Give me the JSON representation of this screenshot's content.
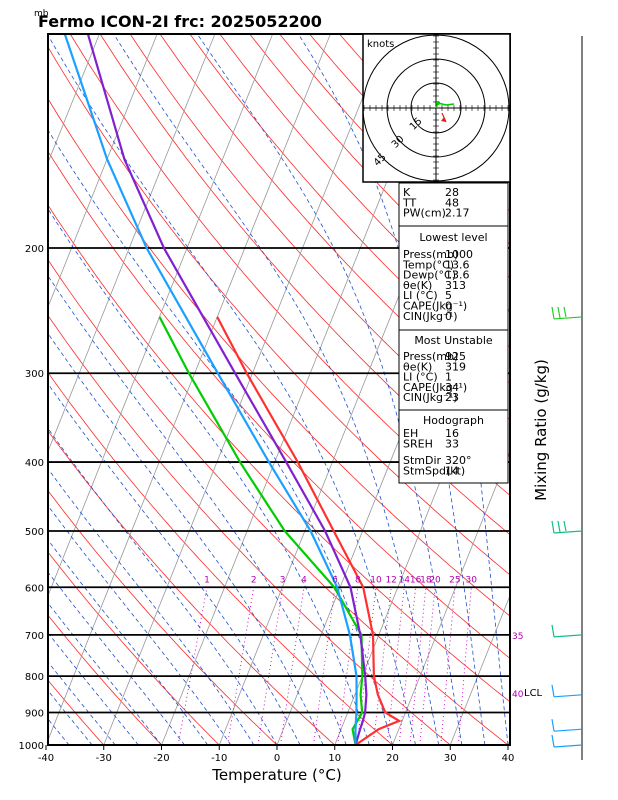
{
  "chart_data": {
    "type": "line",
    "title": "Fermo ICON-2I frc: 2025052200",
    "pressure_unit_label": "mb",
    "xlabel": "Temperature (°C)",
    "right_axis_label": "Mixing Ratio (g/kg)",
    "xlim": [
      -40,
      40
    ],
    "ylim": [
      1000,
      100
    ],
    "y_scale": "log",
    "x_ticks": [
      "-40",
      "-30",
      "-20",
      "-10",
      "0",
      "10",
      "20",
      "30",
      "40"
    ],
    "y_ticks": [
      "200",
      "300",
      "400",
      "500",
      "600",
      "700",
      "800",
      "900",
      "1000"
    ],
    "mixing_ratio_labels": [
      "1",
      "2",
      "3",
      "4",
      "6",
      "8",
      "10",
      "12",
      "14",
      "16",
      "18",
      "20",
      "25",
      "30"
    ],
    "annotations": [
      "35",
      "40",
      "LCL"
    ],
    "series": [
      {
        "color": "#ff3030",
        "points": [
          [
            1000,
            13.6
          ],
          [
            950,
            16.5
          ],
          [
            925,
            19.5
          ],
          [
            900,
            16.5
          ],
          [
            850,
            14
          ],
          [
            800,
            12
          ],
          [
            700,
            9
          ],
          [
            600,
            4
          ],
          [
            500,
            -5
          ],
          [
            400,
            -16
          ],
          [
            300,
            -31
          ],
          [
            250,
            -40
          ]
        ]
      },
      {
        "color": "#00cc00",
        "points": [
          [
            1000,
            13.6
          ],
          [
            950,
            12
          ],
          [
            900,
            12.5
          ],
          [
            850,
            11
          ],
          [
            800,
            10
          ],
          [
            700,
            7
          ],
          [
            600,
            -1
          ],
          [
            500,
            -13.5
          ],
          [
            400,
            -26
          ],
          [
            300,
            -41
          ],
          [
            250,
            -50
          ]
        ]
      },
      {
        "color": "#8020d0",
        "points": [
          [
            1000,
            13.6
          ],
          [
            950,
            13.3
          ],
          [
            925,
            13.2
          ],
          [
            900,
            13
          ],
          [
            850,
            12
          ],
          [
            800,
            10.5
          ],
          [
            700,
            6.8
          ],
          [
            600,
            1.8
          ],
          [
            500,
            -6.5
          ],
          [
            400,
            -18
          ],
          [
            300,
            -33
          ],
          [
            200,
            -54
          ],
          [
            150,
            -67
          ],
          [
            100,
            -82
          ]
        ]
      },
      {
        "color": "#1aa0ff",
        "points": [
          [
            1000,
            13.6
          ],
          [
            950,
            12.5
          ],
          [
            900,
            11.5
          ],
          [
            850,
            10.3
          ],
          [
            800,
            9
          ],
          [
            700,
            5
          ],
          [
            600,
            -0.5
          ],
          [
            500,
            -9
          ],
          [
            400,
            -21
          ],
          [
            300,
            -36
          ],
          [
            200,
            -57
          ],
          [
            150,
            -70
          ],
          [
            100,
            -86
          ]
        ]
      }
    ],
    "hodograph": {
      "label": "knots",
      "ring_labels": [
        "15",
        "30",
        "45"
      ],
      "storm_motion_kt": [
        -3,
        -7
      ]
    },
    "wind_barbs": [
      "1000",
      "950",
      "850",
      "700",
      "500",
      "250"
    ],
    "stats": {
      "rows1": [
        [
          "K",
          "28"
        ],
        [
          "TT",
          "48"
        ],
        [
          "PW(cm)",
          "2.17"
        ]
      ],
      "lowest_header": "Lowest level",
      "rows2": [
        [
          "Press(mb)",
          "1000"
        ],
        [
          "Temp(°C)",
          "13.6"
        ],
        [
          "Dewp(°C)",
          "13.6"
        ],
        [
          "θe(K)",
          "313"
        ],
        [
          "LI (°C)",
          "5"
        ],
        [
          "CAPE(Jkg⁻¹)",
          "0"
        ],
        [
          "CIN(Jkg⁻¹)",
          "0"
        ]
      ],
      "unstable_header": "Most Unstable",
      "rows3": [
        [
          "Press(mb)",
          "925"
        ],
        [
          "θe(K)",
          "319"
        ],
        [
          "LI (°C)",
          "1"
        ],
        [
          "CAPE(Jkg⁻¹)",
          "34"
        ],
        [
          "CIN(Jkg⁻¹)",
          "23"
        ]
      ],
      "hodo_header": "Hodograph",
      "rows4": [
        [
          "EH",
          "16"
        ],
        [
          "SREH",
          "33"
        ]
      ],
      "rows5": [
        [
          "StmDir",
          "320°"
        ],
        [
          "StmSpd(kt)",
          "14"
        ]
      ]
    }
  }
}
